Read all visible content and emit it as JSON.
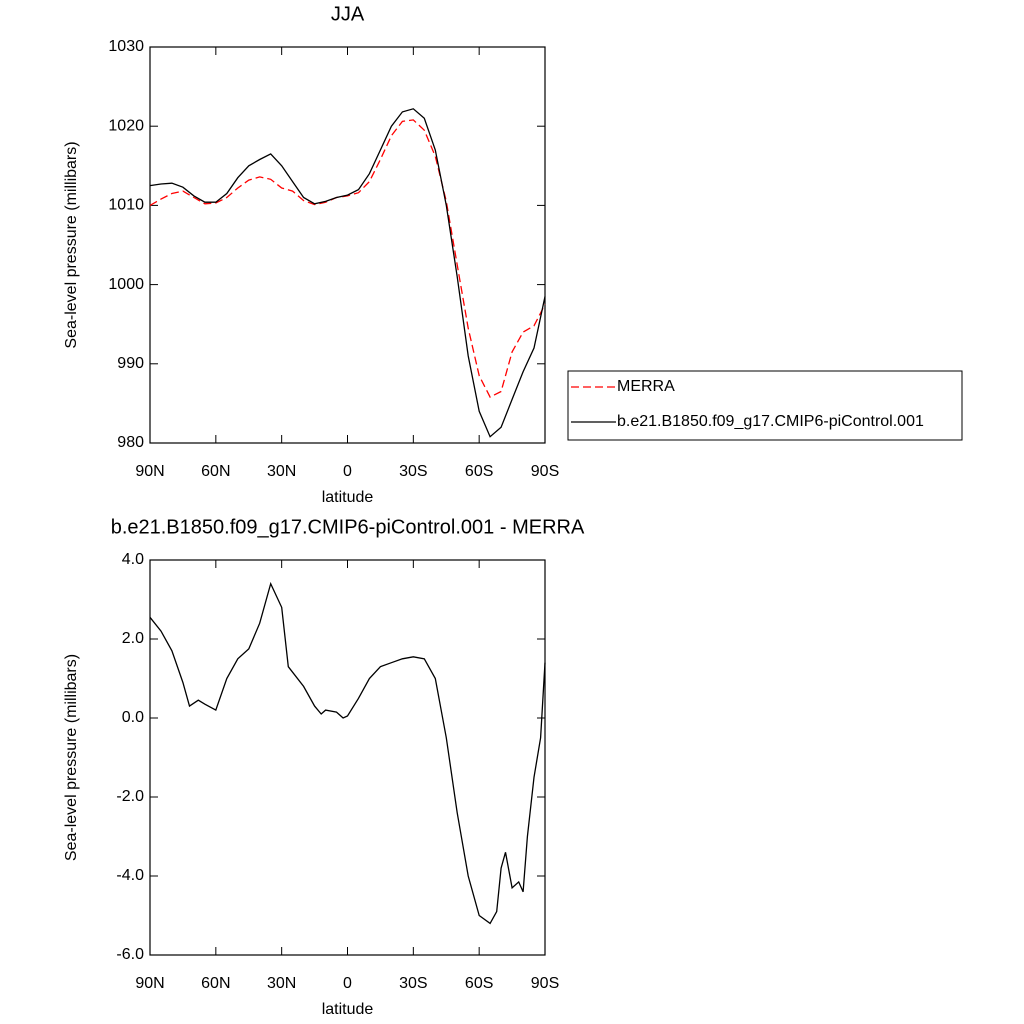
{
  "chart_data": [
    {
      "type": "line",
      "title": "JJA",
      "xlabel": "latitude",
      "ylabel": "Sea-level pressure (millibars)",
      "x": [
        90,
        85,
        80,
        75,
        70,
        65,
        60,
        55,
        50,
        45,
        40,
        35,
        30,
        25,
        20,
        15,
        10,
        5,
        0,
        -5,
        -10,
        -15,
        -20,
        -25,
        -30,
        -35,
        -40,
        -45,
        -50,
        -55,
        -60,
        -65,
        -70,
        -75,
        -80,
        -85,
        -90
      ],
      "series": [
        {
          "name": "MERRA",
          "color": "#ff0000",
          "dashed": true,
          "values": [
            1010,
            1010.8,
            1011.5,
            1011.8,
            1011,
            1010.2,
            1010.3,
            1011,
            1012.2,
            1013.2,
            1013.6,
            1013.3,
            1012.2,
            1011.8,
            1010.6,
            1010.1,
            1010.4,
            1011,
            1011.2,
            1011.6,
            1013,
            1015.8,
            1018.8,
            1020.6,
            1020.8,
            1019.5,
            1016.2,
            1010.5,
            1002.5,
            994.5,
            988.5,
            985.8,
            986.5,
            991.5,
            994,
            994.8,
            997.5
          ]
        },
        {
          "name": "b.e21.B1850.f09_g17.CMIP6-piControl.001",
          "color": "#000000",
          "dashed": false,
          "values": [
            1012.5,
            1012.7,
            1012.8,
            1012.3,
            1011.2,
            1010.4,
            1010.4,
            1011.5,
            1013.5,
            1015,
            1015.8,
            1016.5,
            1015,
            1013,
            1011,
            1010.2,
            1010.5,
            1011,
            1011.3,
            1012,
            1014,
            1017,
            1020,
            1021.8,
            1022.2,
            1021,
            1017,
            1010,
            1001,
            991,
            984,
            980.8,
            982,
            985.5,
            989,
            992,
            998.5
          ]
        }
      ],
      "xlim": [
        90,
        -90
      ],
      "xticks": [
        {
          "value": 90,
          "label": "90N"
        },
        {
          "value": 60,
          "label": "60N"
        },
        {
          "value": 30,
          "label": "30N"
        },
        0,
        {
          "value": -30,
          "label": "30S"
        },
        {
          "value": -60,
          "label": "60S"
        },
        {
          "value": -90,
          "label": "90S"
        }
      ],
      "ylim": [
        980,
        1030
      ],
      "yticks": [
        980,
        990,
        1000,
        1010,
        1020,
        1030
      ],
      "legend": "right"
    },
    {
      "type": "line",
      "title": "b.e21.B1850.f09_g17.CMIP6-piControl.001 - MERRA",
      "xlabel": "latitude",
      "ylabel": "Sea-level pressure (millibars)",
      "x": [
        90,
        85,
        80,
        75,
        72,
        68,
        65,
        60,
        55,
        50,
        45,
        40,
        35,
        30,
        27,
        20,
        15,
        12,
        10,
        5,
        2,
        0,
        -5,
        -10,
        -15,
        -20,
        -25,
        -30,
        -35,
        -40,
        -45,
        -50,
        -55,
        -60,
        -65,
        -68,
        -70,
        -72,
        -75,
        -78,
        -80,
        -82,
        -85,
        -88,
        -90
      ],
      "values": [
        2.55,
        2.2,
        1.7,
        0.9,
        0.3,
        0.45,
        0.35,
        0.2,
        1.0,
        1.5,
        1.75,
        2.4,
        3.4,
        2.8,
        1.3,
        0.8,
        0.3,
        0.1,
        0.2,
        0.15,
        0.0,
        0.05,
        0.5,
        1.0,
        1.3,
        1.4,
        1.5,
        1.55,
        1.5,
        1.0,
        -0.5,
        -2.4,
        -4.0,
        -5.0,
        -5.2,
        -4.9,
        -3.8,
        -3.4,
        -4.3,
        -4.15,
        -4.4,
        -3.0,
        -1.5,
        -0.5,
        1.4
      ],
      "color": "#000000",
      "xlim": [
        90,
        -90
      ],
      "xticks": [
        {
          "value": 90,
          "label": "90N"
        },
        {
          "value": 60,
          "label": "60N"
        },
        {
          "value": 30,
          "label": "30N"
        },
        0,
        {
          "value": -30,
          "label": "30S"
        },
        {
          "value": -60,
          "label": "60S"
        },
        {
          "value": -90,
          "label": "90S"
        }
      ],
      "ylim": [
        -6,
        4
      ],
      "yticks": [
        {
          "value": -6,
          "label": "-6.0"
        },
        {
          "value": -4,
          "label": "-4.0"
        },
        {
          "value": -2,
          "label": "-2.0"
        },
        {
          "value": 0,
          "label": "0.0"
        },
        {
          "value": 2,
          "label": "2.0"
        },
        {
          "value": 4,
          "label": "4.0"
        }
      ]
    }
  ]
}
